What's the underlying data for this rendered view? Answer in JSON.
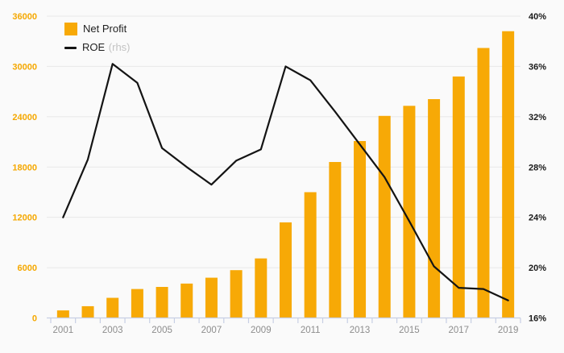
{
  "page": {
    "background": "#fafafa",
    "grid_color": "#e8e8e8",
    "axis_line_color": "#c7cfe4",
    "x_label_color": "#8d8d8d"
  },
  "legend": {
    "bar_label": "Net Profit",
    "line_label": "ROE",
    "line_suffix": "(rhs)"
  },
  "chart_data": {
    "type": "combo",
    "subtype": [
      "bar",
      "line"
    ],
    "x": [
      2001,
      2002,
      2003,
      2004,
      2005,
      2006,
      2007,
      2008,
      2009,
      2010,
      2011,
      2012,
      2013,
      2014,
      2015,
      2016,
      2017,
      2018,
      2019
    ],
    "x_tick_labels": [
      "2001",
      "2003",
      "2005",
      "2007",
      "2009",
      "2011",
      "2013",
      "2015",
      "2017",
      "2019"
    ],
    "series": [
      {
        "name": "Net Profit",
        "type": "bar",
        "axis": "left",
        "color": "#F7A906",
        "values": [
          900,
          1400,
          2400,
          3450,
          3700,
          4100,
          4800,
          5700,
          7100,
          11400,
          15000,
          18600,
          21100,
          24100,
          25300,
          26100,
          28800,
          32200,
          34200
        ]
      },
      {
        "name": "ROE (rhs)",
        "type": "line",
        "axis": "right",
        "color": "#141414",
        "values": [
          24.0,
          28.6,
          36.2,
          34.7,
          29.5,
          28.0,
          26.6,
          28.5,
          29.4,
          36.0,
          34.9,
          32.4,
          29.8,
          27.2,
          23.7,
          20.1,
          18.4,
          18.3,
          17.4
        ]
      }
    ],
    "left_axis": {
      "min": 0,
      "max": 36000,
      "step": 6000,
      "tick_labels": [
        "0",
        "6000",
        "12000",
        "18000",
        "24000",
        "30000",
        "36000"
      ],
      "color": "#F5A800"
    },
    "right_axis": {
      "min": 16,
      "max": 40,
      "step": 4,
      "tick_labels": [
        "16%",
        "20%",
        "24%",
        "28%",
        "32%",
        "36%",
        "40%"
      ],
      "unit": "%",
      "color": "#1a1a1a"
    },
    "grid": true,
    "legend_position": "top-left"
  }
}
